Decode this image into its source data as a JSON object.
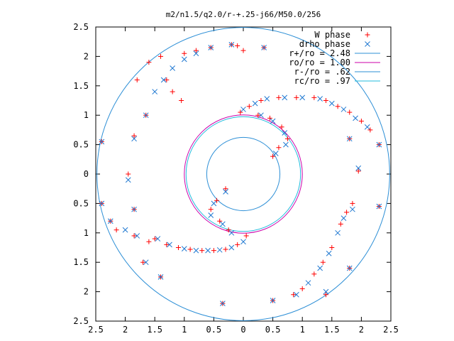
{
  "chart_data": {
    "type": "scatter",
    "title": "m2/n1.5/q2.0/r-+.25-j66/M50.0/256",
    "xlabel": "",
    "ylabel": "",
    "xlim": [
      -2.5,
      2.5
    ],
    "ylim": [
      -2.5,
      2.5
    ],
    "x_tick_labels": [
      "2.5",
      "2",
      "1.5",
      "1",
      "0.5",
      "0",
      "0.5",
      "1",
      "1.5",
      "2",
      "2.5"
    ],
    "y_tick_labels": [
      "2.5",
      "2",
      "1.5",
      "1",
      "0.5",
      "0",
      "0.5",
      "1",
      "1.5",
      "2",
      "2.5"
    ],
    "grid": false,
    "legend_position": "top-right",
    "colors": {
      "w_phase": "#ff0000",
      "drho_phase": "#1f78d1",
      "r_plus": "#2d8fd6",
      "ro": "#cc00aa",
      "r_minus": "#2d8fd6",
      "rc": "#22bbdd"
    },
    "series": [
      {
        "name": "W phase",
        "marker": "plus",
        "points": [
          [
            -0.2,
            2.2
          ],
          [
            -0.1,
            2.18
          ],
          [
            0.35,
            2.15
          ],
          [
            0.0,
            2.1
          ],
          [
            -0.55,
            2.15
          ],
          [
            -0.8,
            2.1
          ],
          [
            -1.0,
            2.05
          ],
          [
            -1.4,
            2.0
          ],
          [
            -1.6,
            1.9
          ],
          [
            -1.3,
            1.6
          ],
          [
            -1.8,
            1.6
          ],
          [
            -1.2,
            1.4
          ],
          [
            -1.05,
            1.25
          ],
          [
            -1.65,
            1.0
          ],
          [
            -1.85,
            0.65
          ],
          [
            -2.4,
            0.55
          ],
          [
            -1.95,
            0.0
          ],
          [
            -1.85,
            -0.6
          ],
          [
            -2.4,
            -0.5
          ],
          [
            -2.25,
            -0.8
          ],
          [
            -2.15,
            -0.95
          ],
          [
            -1.85,
            -1.05
          ],
          [
            -1.6,
            -1.15
          ],
          [
            -1.7,
            -1.5
          ],
          [
            -1.5,
            -1.1
          ],
          [
            -1.3,
            -1.2
          ],
          [
            -1.1,
            -1.25
          ],
          [
            -0.9,
            -1.28
          ],
          [
            -0.7,
            -1.3
          ],
          [
            -0.5,
            -1.3
          ],
          [
            -0.3,
            -1.28
          ],
          [
            -0.1,
            -1.2
          ],
          [
            0.05,
            -1.05
          ],
          [
            -1.4,
            -1.75
          ],
          [
            -0.35,
            -2.2
          ],
          [
            0.5,
            -2.15
          ],
          [
            0.85,
            -2.05
          ],
          [
            1.0,
            -1.95
          ],
          [
            1.2,
            -1.7
          ],
          [
            1.35,
            -1.5
          ],
          [
            1.5,
            -1.25
          ],
          [
            1.65,
            -0.85
          ],
          [
            1.75,
            -0.65
          ],
          [
            1.85,
            -0.5
          ],
          [
            1.8,
            -1.6
          ],
          [
            1.4,
            -2.05
          ],
          [
            2.3,
            -0.55
          ],
          [
            1.95,
            0.05
          ],
          [
            1.8,
            0.6
          ],
          [
            2.3,
            0.5
          ],
          [
            2.15,
            0.75
          ],
          [
            2.0,
            0.9
          ],
          [
            1.8,
            1.05
          ],
          [
            1.6,
            1.15
          ],
          [
            1.4,
            1.25
          ],
          [
            1.2,
            1.3
          ],
          [
            0.9,
            1.3
          ],
          [
            0.6,
            1.3
          ],
          [
            0.3,
            1.25
          ],
          [
            0.1,
            1.15
          ],
          [
            -0.05,
            1.05
          ],
          [
            0.25,
            1.0
          ],
          [
            0.45,
            0.95
          ],
          [
            0.65,
            0.8
          ],
          [
            0.75,
            0.6
          ],
          [
            0.6,
            0.45
          ],
          [
            0.5,
            0.3
          ],
          [
            -0.3,
            -0.25
          ],
          [
            -0.45,
            -0.45
          ],
          [
            -0.55,
            -0.6
          ],
          [
            -0.4,
            -0.8
          ],
          [
            -0.25,
            -0.95
          ]
        ]
      },
      {
        "name": "drho phase",
        "marker": "cross",
        "points": [
          [
            -0.2,
            2.2
          ],
          [
            0.35,
            2.15
          ],
          [
            -0.55,
            2.15
          ],
          [
            -0.8,
            2.05
          ],
          [
            -1.0,
            1.95
          ],
          [
            -1.2,
            1.8
          ],
          [
            -1.35,
            1.6
          ],
          [
            -1.5,
            1.4
          ],
          [
            -1.65,
            1.0
          ],
          [
            -1.85,
            0.6
          ],
          [
            -2.4,
            0.55
          ],
          [
            -1.95,
            -0.1
          ],
          [
            -1.85,
            -0.6
          ],
          [
            -2.4,
            -0.5
          ],
          [
            -2.25,
            -0.8
          ],
          [
            -2.0,
            -0.95
          ],
          [
            -1.8,
            -1.05
          ],
          [
            -1.65,
            -1.5
          ],
          [
            -1.45,
            -1.1
          ],
          [
            -1.25,
            -1.2
          ],
          [
            -1.0,
            -1.27
          ],
          [
            -0.8,
            -1.3
          ],
          [
            -0.6,
            -1.3
          ],
          [
            -0.4,
            -1.29
          ],
          [
            -0.2,
            -1.25
          ],
          [
            0.0,
            -1.15
          ],
          [
            -1.4,
            -1.75
          ],
          [
            -0.35,
            -2.2
          ],
          [
            0.5,
            -2.15
          ],
          [
            0.9,
            -2.05
          ],
          [
            1.1,
            -1.85
          ],
          [
            1.3,
            -1.6
          ],
          [
            1.45,
            -1.35
          ],
          [
            1.6,
            -1.0
          ],
          [
            1.7,
            -0.75
          ],
          [
            1.85,
            -0.6
          ],
          [
            1.8,
            -1.6
          ],
          [
            1.4,
            -2.0
          ],
          [
            2.3,
            -0.55
          ],
          [
            1.95,
            0.1
          ],
          [
            1.8,
            0.6
          ],
          [
            2.3,
            0.5
          ],
          [
            2.1,
            0.8
          ],
          [
            1.9,
            0.95
          ],
          [
            1.7,
            1.1
          ],
          [
            1.5,
            1.2
          ],
          [
            1.3,
            1.28
          ],
          [
            1.0,
            1.3
          ],
          [
            0.7,
            1.3
          ],
          [
            0.4,
            1.28
          ],
          [
            0.2,
            1.2
          ],
          [
            0.0,
            1.1
          ],
          [
            0.3,
            1.0
          ],
          [
            0.5,
            0.9
          ],
          [
            0.7,
            0.7
          ],
          [
            0.72,
            0.5
          ],
          [
            0.55,
            0.35
          ],
          [
            -0.3,
            -0.3
          ],
          [
            -0.5,
            -0.5
          ],
          [
            -0.55,
            -0.7
          ],
          [
            -0.35,
            -0.85
          ],
          [
            -0.2,
            -1.0
          ]
        ]
      }
    ],
    "circles": [
      {
        "name": "r+/ro = 2.48",
        "radius": 2.48
      },
      {
        "name": "ro/ro = 1.00",
        "radius": 1.0
      },
      {
        "name": "r-/ro = .62",
        "radius": 0.62
      },
      {
        "name": "rc/ro = .97",
        "radius": 0.97
      }
    ],
    "legend": [
      {
        "label": "W phase",
        "key": "w_phase",
        "kind": "plus"
      },
      {
        "label": "drho phase",
        "key": "drho_phase",
        "kind": "cross"
      },
      {
        "label": "r+/ro = 2.48",
        "key": "r_plus",
        "kind": "line"
      },
      {
        "label": "ro/ro = 1.00",
        "key": "ro",
        "kind": "line"
      },
      {
        "label": "r-/ro = .62",
        "key": "r_minus",
        "kind": "line"
      },
      {
        "label": "rc/ro = .97",
        "key": "rc",
        "kind": "line"
      }
    ]
  }
}
